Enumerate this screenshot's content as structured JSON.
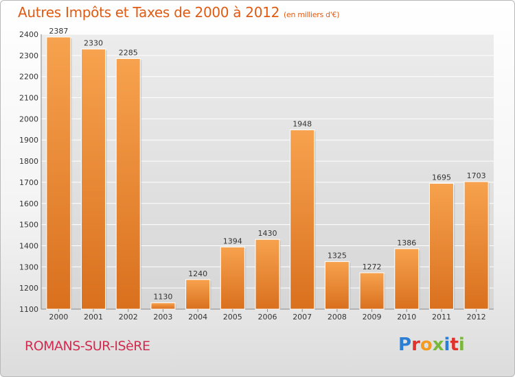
{
  "title": "Autres Impôts et Taxes de 2000 à 2012",
  "title_unit": "(en milliers d'€)",
  "city": "ROMANS-SUR-ISèRE",
  "brand": [
    "P",
    "r",
    "o",
    "x",
    "i",
    "t",
    "i"
  ],
  "colors": {
    "title": "#e05a12",
    "city": "#d12b4f",
    "bar_light": "#f7a24e",
    "bar_dark": "#d9701e"
  },
  "chart_data": {
    "type": "bar",
    "categories": [
      "2000",
      "2001",
      "2002",
      "2003",
      "2004",
      "2005",
      "2006",
      "2007",
      "2008",
      "2009",
      "2010",
      "2011",
      "2012"
    ],
    "values": [
      2387,
      2330,
      2285,
      1130,
      1240,
      1394,
      1430,
      1948,
      1325,
      1272,
      1386,
      1695,
      1703
    ],
    "ylim": [
      1100,
      2400
    ],
    "yticks": [
      1100,
      1200,
      1300,
      1400,
      1500,
      1600,
      1700,
      1800,
      1900,
      2000,
      2100,
      2200,
      2300,
      2400
    ],
    "grid": true
  }
}
